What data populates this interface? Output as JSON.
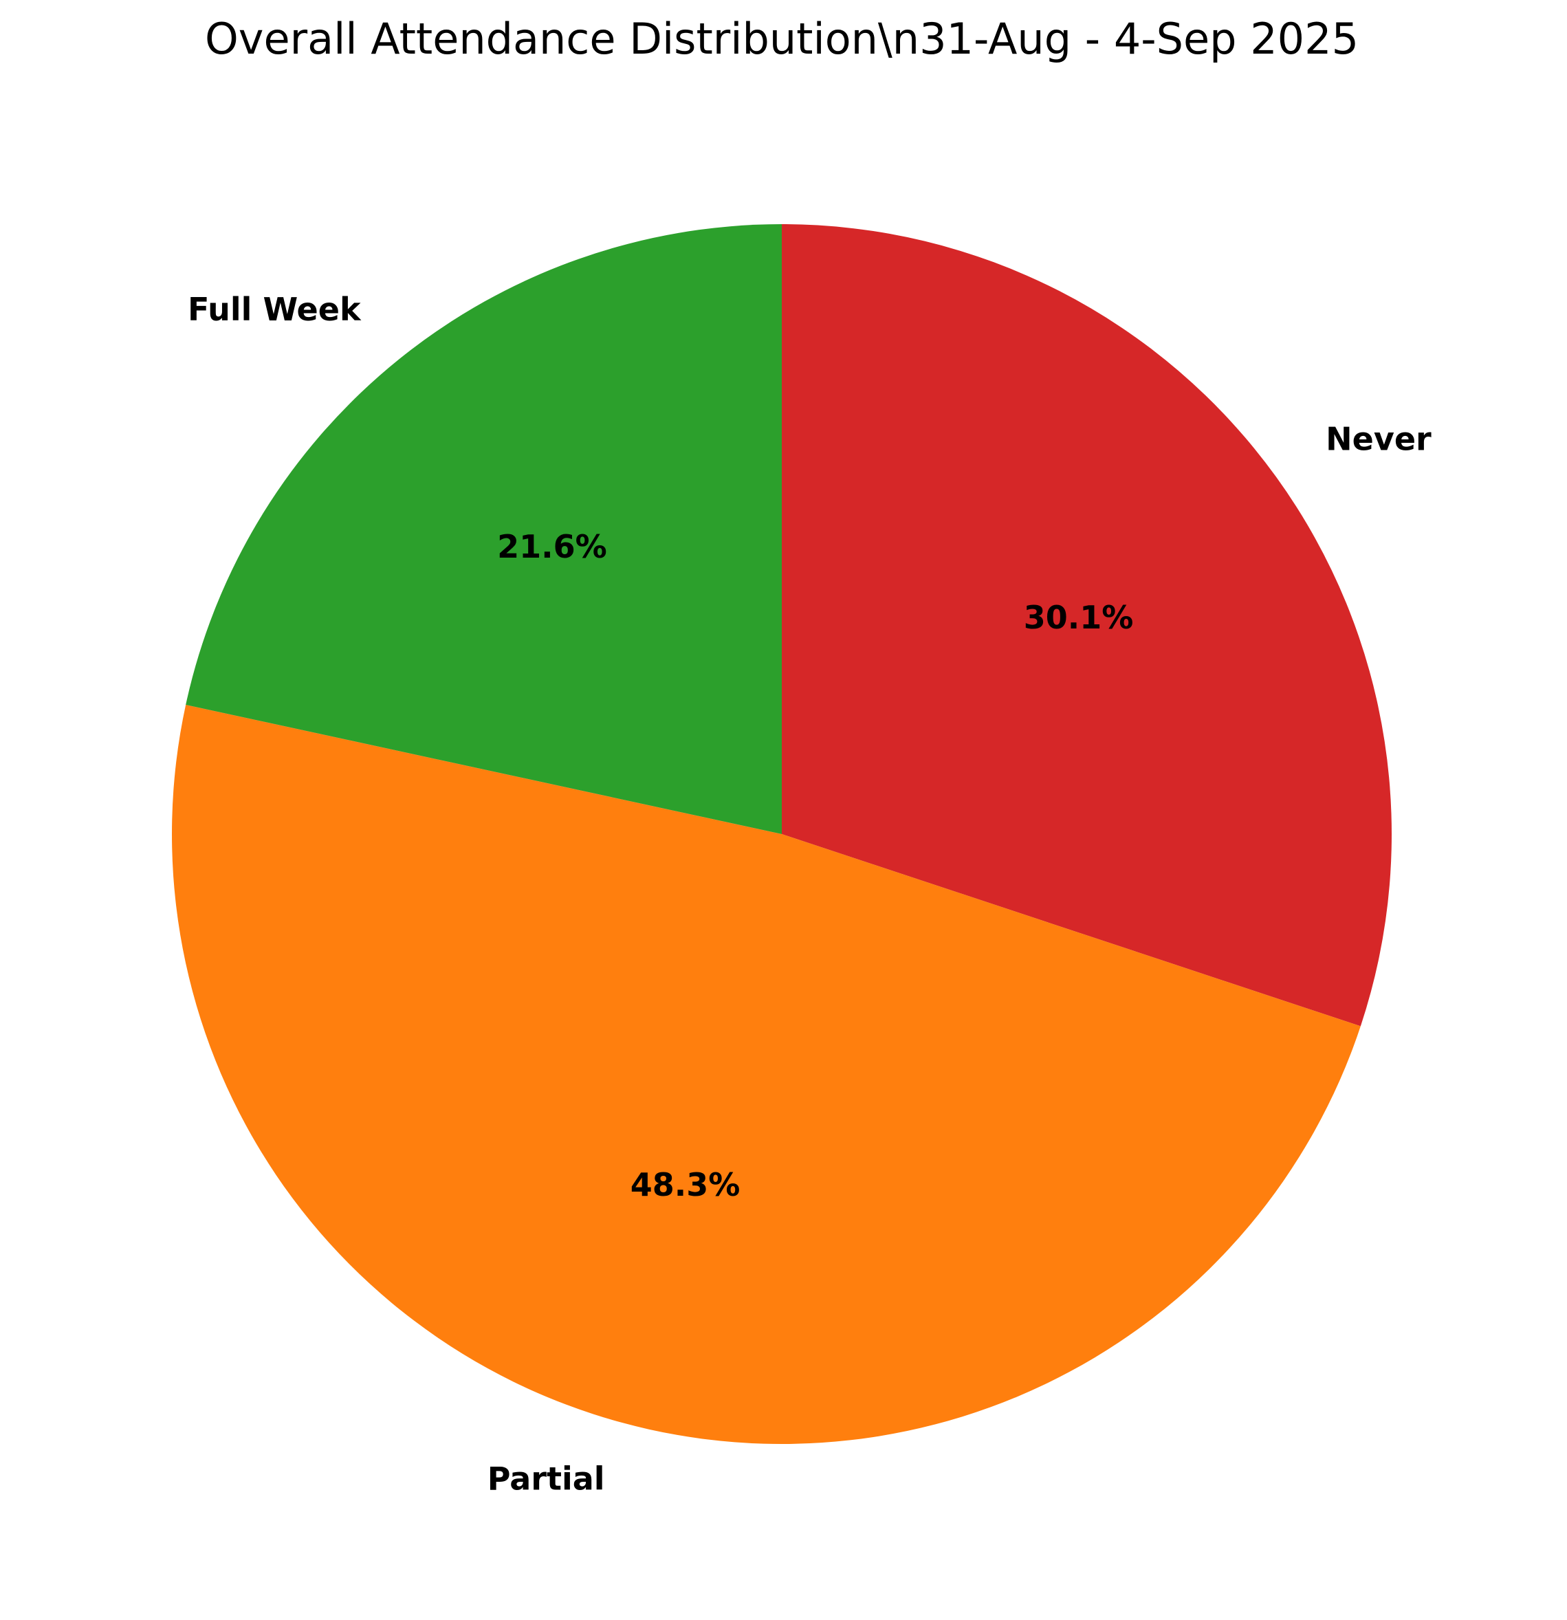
{
  "chart_data": {
    "type": "pie",
    "title": "Overall Attendance Distribution\\n31-Aug - 4-Sep 2025",
    "categories": [
      "Never",
      "Partial",
      "Full Week"
    ],
    "values": [
      30.1,
      48.3,
      21.6
    ],
    "value_labels": [
      "30.1%",
      "48.3%",
      "21.6%"
    ],
    "colors": [
      "#d62728",
      "#ff7f0e",
      "#2ca02c"
    ],
    "start_angle_deg": 90,
    "direction": "clockwise",
    "legend": "none"
  }
}
